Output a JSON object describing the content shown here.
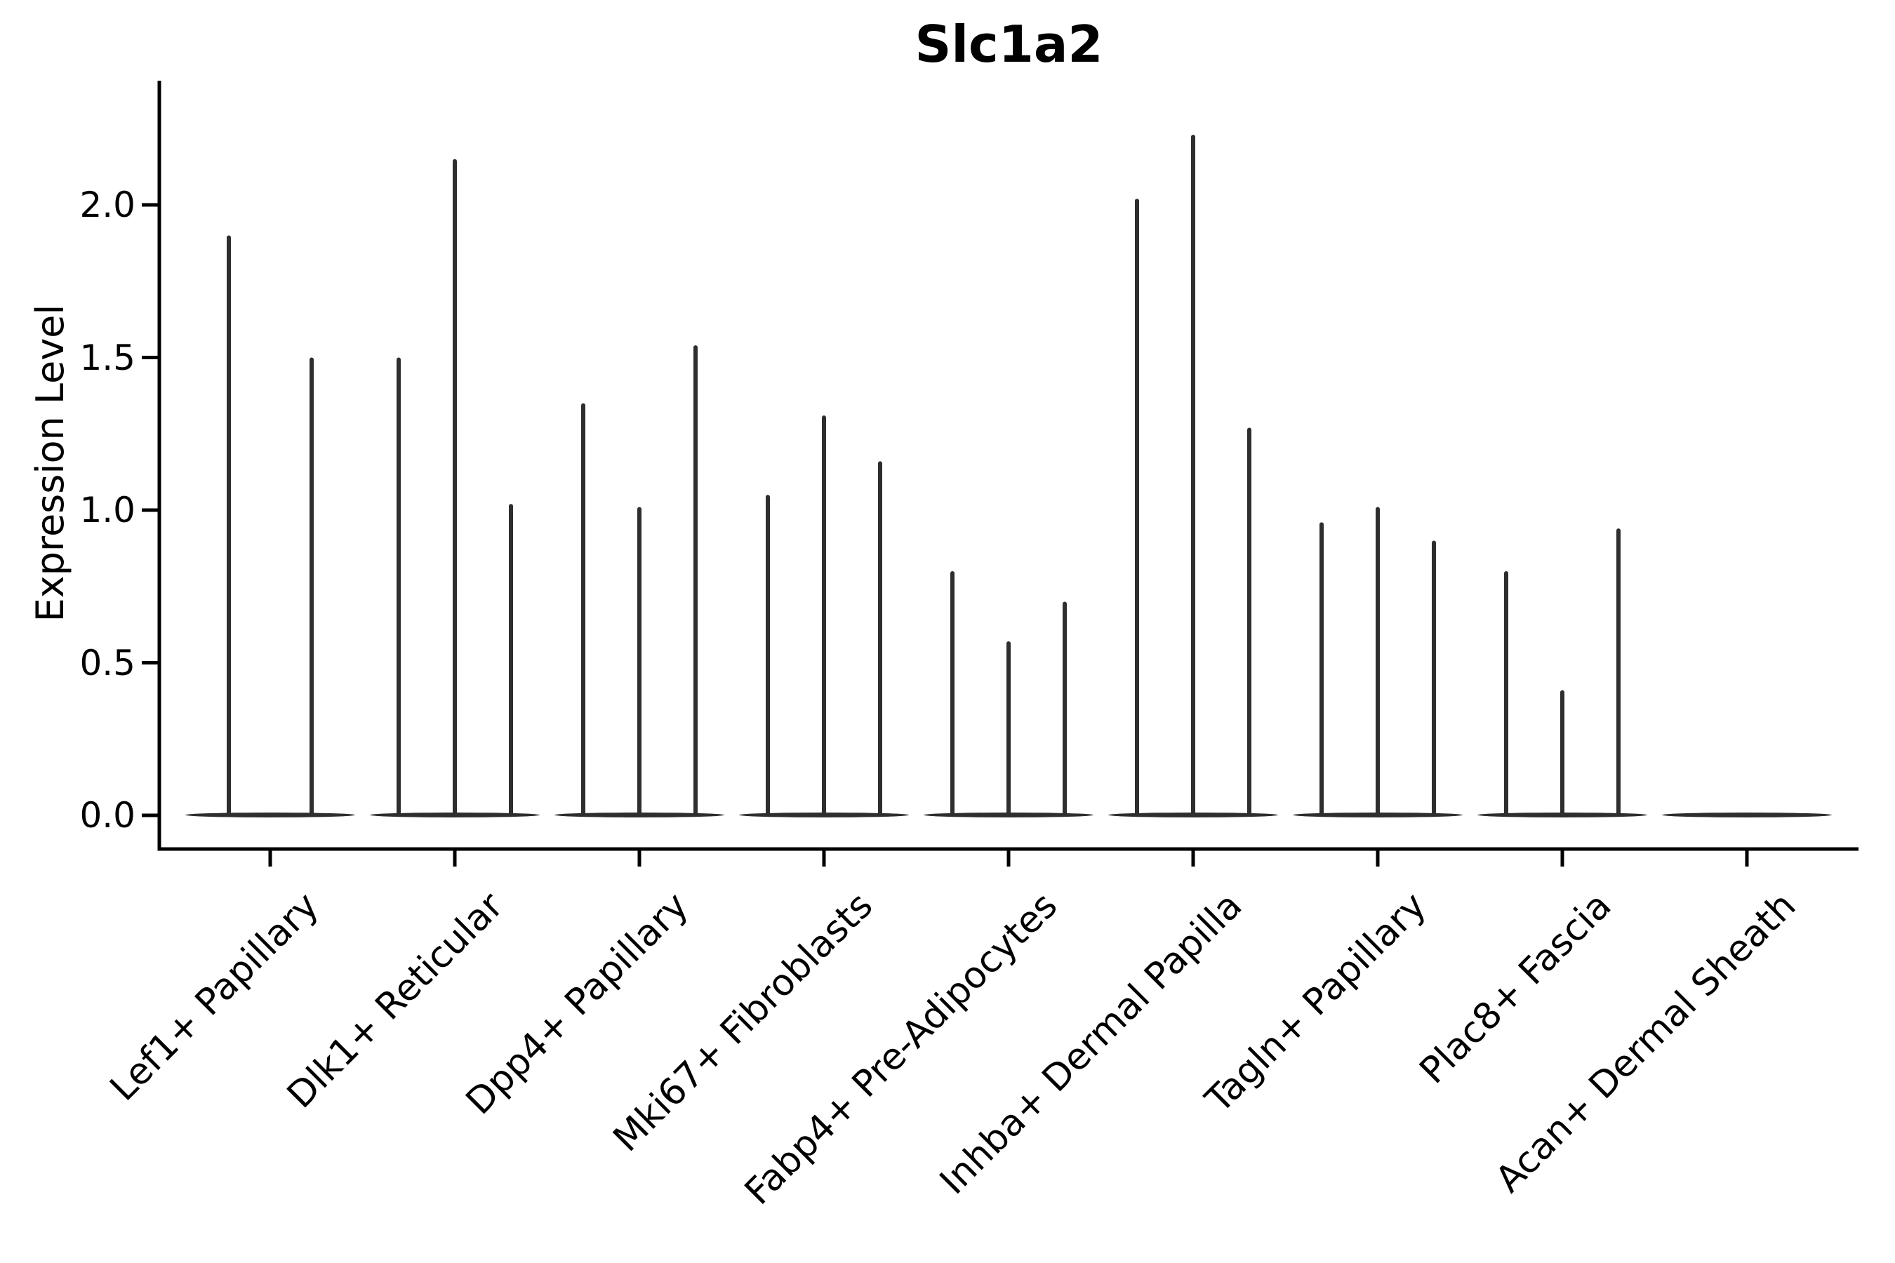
{
  "chart_data": {
    "type": "violin",
    "title": "Slc1a2",
    "ylabel": "Expression Level",
    "xlabel": "",
    "ylim": [
      -0.11,
      2.41
    ],
    "ytick_labels": [
      "0.0",
      "0.5",
      "1.0",
      "1.5",
      "2.0"
    ],
    "ytick_values": [
      0,
      0.5,
      1.0,
      1.5,
      2.0
    ],
    "grid": false,
    "legend": "none",
    "violin_color": "#2e2e2e",
    "axis_color": "#000000",
    "background_color": "#ffffff",
    "categories": [
      "Lef1+ Papillary",
      "Dlk1+ Reticular",
      "Dpp4+ Papillary",
      "Mki67+ Fibroblasts",
      "Fabp4+ Pre-Adipocytes",
      "Inhba+ Dermal Papilla",
      "Tagln+ Papillary",
      "Plac8+ Fascia",
      "Acan+ Dermal Sheath"
    ],
    "groups": [
      {
        "label": "Lef1+ Papillary",
        "peak_expression": [
          1.9,
          1.5
        ]
      },
      {
        "label": "Dlk1+ Reticular",
        "peak_expression": [
          1.5,
          2.15,
          1.02
        ]
      },
      {
        "label": "Dpp4+ Papillary",
        "peak_expression": [
          1.35,
          1.01,
          1.54
        ]
      },
      {
        "label": "Mki67+ Fibroblasts",
        "peak_expression": [
          1.05,
          1.31,
          1.16
        ]
      },
      {
        "label": "Fabp4+ Pre-Adipocytes",
        "peak_expression": [
          0.8,
          0.57,
          0.7
        ]
      },
      {
        "label": "Inhba+ Dermal Papilla",
        "peak_expression": [
          2.02,
          2.23,
          1.27
        ]
      },
      {
        "label": "Tagln+ Papillary",
        "peak_expression": [
          0.96,
          1.01,
          0.9
        ]
      },
      {
        "label": "Plac8+ Fascia",
        "peak_expression": [
          0.8,
          0.41,
          0.94
        ]
      },
      {
        "label": "Acan+ Dermal Sheath",
        "peak_expression": []
      }
    ]
  }
}
